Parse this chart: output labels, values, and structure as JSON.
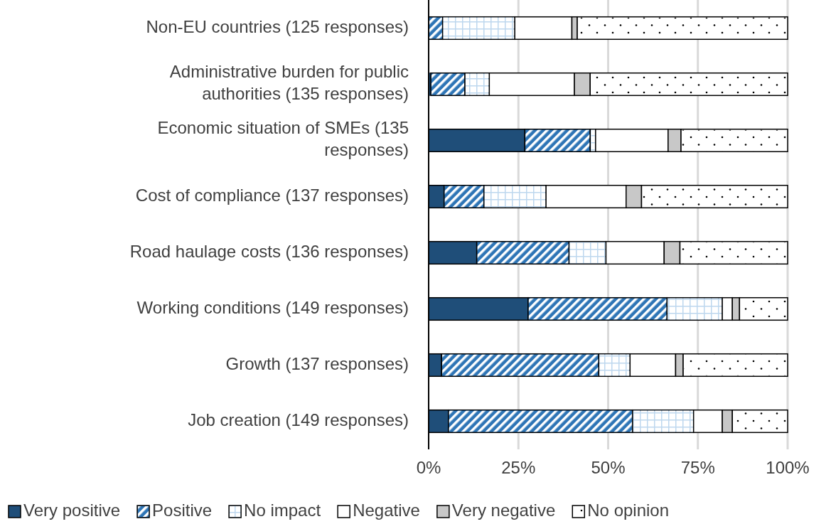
{
  "chart_data": {
    "type": "bar",
    "orientation": "horizontal",
    "stacked": true,
    "categories": [
      "Non-EU countries (125 responses)",
      "Administrative burden for public authorities (135 responses)",
      "Economic situation of SMEs (135 responses)",
      "Cost of compliance (137 responses)",
      "Road haulage costs (136 responses)",
      "Working conditions (149 responses)",
      "Growth (137 responses)",
      "Job creation (149 responses)"
    ],
    "series": [
      {
        "name": "Very positive",
        "color": "#1f4e79",
        "values": [
          0,
          0.6,
          26.8,
          4.3,
          13.4,
          27.7,
          3.6,
          5.5
        ]
      },
      {
        "name": "Positive",
        "color": "#2e75b6",
        "values": [
          3.9,
          9.5,
          18.2,
          11.1,
          25.7,
          38.7,
          43.8,
          51.3
        ]
      },
      {
        "name": "No impact",
        "color": "#bdd7ee",
        "values": [
          20.1,
          6.8,
          1.5,
          17.3,
          10.3,
          15.4,
          8.7,
          17.0
        ]
      },
      {
        "name": "Negative",
        "color": "#ffffff",
        "values": [
          15.9,
          23.7,
          20.2,
          22.3,
          16.2,
          2.8,
          12.7,
          8.0
        ]
      },
      {
        "name": "Very negative",
        "color": "#c8c8c8",
        "values": [
          1.5,
          4.4,
          3.6,
          4.3,
          4.4,
          2.0,
          2.1,
          2.8
        ]
      },
      {
        "name": "No opinion",
        "color": "#ffffff",
        "values": [
          58.6,
          55.0,
          29.7,
          40.7,
          30.0,
          13.4,
          29.1,
          15.4
        ]
      }
    ],
    "xlim": [
      0,
      100
    ],
    "xticks": [
      {
        "value": 0,
        "label": "0%"
      },
      {
        "value": 25,
        "label": "25%"
      },
      {
        "value": 50,
        "label": "50%"
      },
      {
        "value": 75,
        "label": "75%"
      },
      {
        "value": 100,
        "label": "100%"
      }
    ],
    "grid": "x",
    "legend": "bottom"
  }
}
